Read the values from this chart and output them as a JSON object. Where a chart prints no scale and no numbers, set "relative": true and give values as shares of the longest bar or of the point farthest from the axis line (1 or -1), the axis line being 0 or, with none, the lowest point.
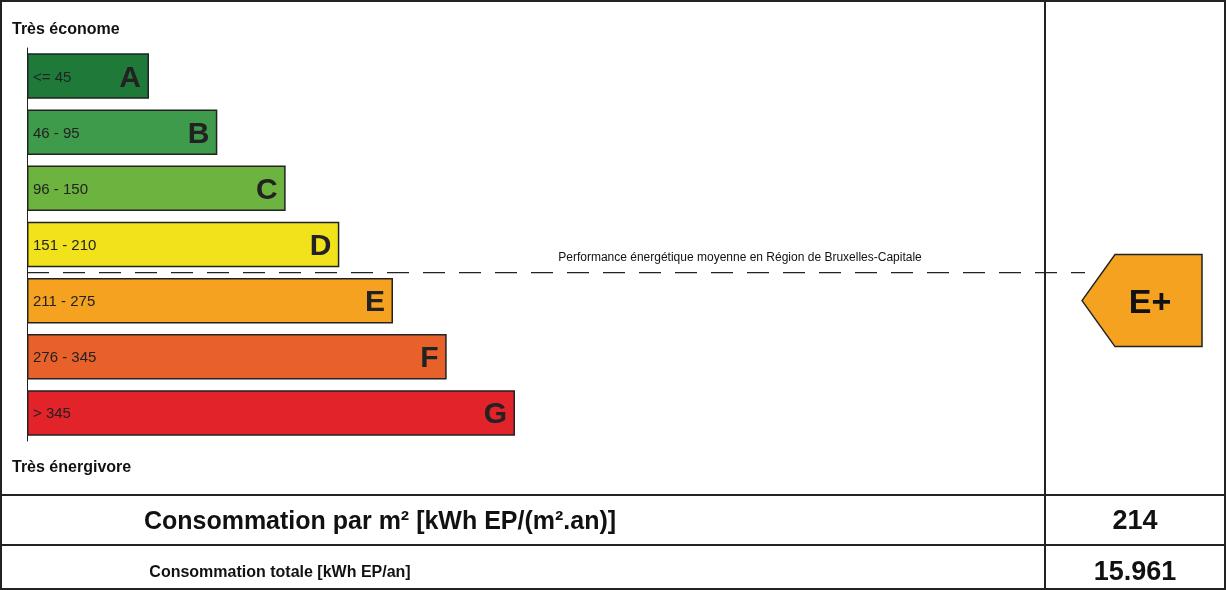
{
  "chart_data": {
    "type": "bar",
    "orientation": "horizontal",
    "relative": true,
    "tick_labels": false,
    "categories": [
      "A",
      "B",
      "C",
      "D",
      "E",
      "F",
      "G"
    ],
    "values": [
      0.25,
      0.39,
      0.53,
      0.64,
      0.75,
      0.86,
      1
    ],
    "colors": [
      "#1f7a3a",
      "#3d9b4b",
      "#6cb33f",
      "#f2e21b",
      "#f4a21f",
      "#e8612a",
      "#e2232a"
    ],
    "annotations": [
      "Très économe",
      "Très énergivore",
      "Performance énergétique moyenne en Région de Bruxelles-Capitale",
      "Consommation par m² [kWh EP/(m².an)]",
      "214",
      "Consommation totale [kWh EP/an]",
      "15.961",
      "E+",
      "<= 45",
      "46 - 95",
      "96 - 150",
      "151 - 210",
      "211 - 275",
      "276 - 345",
      "> 345"
    ]
  }
}
